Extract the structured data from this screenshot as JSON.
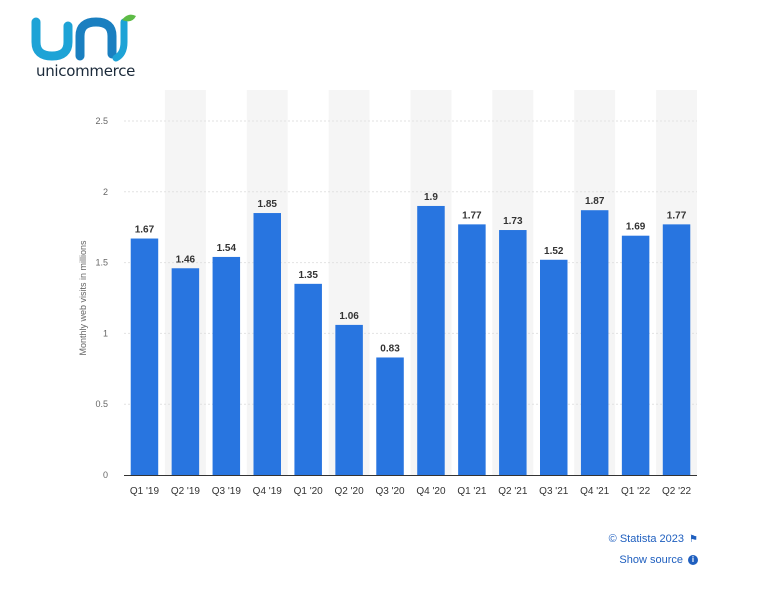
{
  "brand": {
    "logo_text": "unicommerce"
  },
  "footer": {
    "credit": "© Statista 2023",
    "source_link": "Show source"
  },
  "colors": {
    "bar": "#2875e0",
    "band": "#f5f5f5",
    "grid": "#e2e2e2",
    "axis": "#333333",
    "link": "#1f5fbf"
  },
  "chart_data": {
    "type": "bar",
    "categories": [
      "Q1 '19",
      "Q2 '19",
      "Q3 '19",
      "Q4 '19",
      "Q1 '20",
      "Q2 '20",
      "Q3 '20",
      "Q4 '20",
      "Q1 '21",
      "Q2 '21",
      "Q3 '21",
      "Q4 '21",
      "Q1 '22",
      "Q2 '22"
    ],
    "values": [
      1.67,
      1.46,
      1.54,
      1.85,
      1.35,
      1.06,
      0.83,
      1.9,
      1.77,
      1.73,
      1.52,
      1.87,
      1.69,
      1.77
    ],
    "value_labels": [
      "1.67",
      "1.46",
      "1.54",
      "1.85",
      "1.35",
      "1.06",
      "0.83",
      "1.9",
      "1.77",
      "1.73",
      "1.52",
      "1.87",
      "1.69",
      "1.77"
    ],
    "yticks": [
      0,
      0.5,
      1,
      1.5,
      2,
      2.5
    ],
    "ytick_labels": [
      "0",
      "0.5",
      "1",
      "1.5",
      "2",
      "2.5"
    ],
    "ylim": [
      0,
      2.5
    ],
    "ylabel": "Monthly web visits in millions",
    "grid": true,
    "alternating_bands": true
  }
}
